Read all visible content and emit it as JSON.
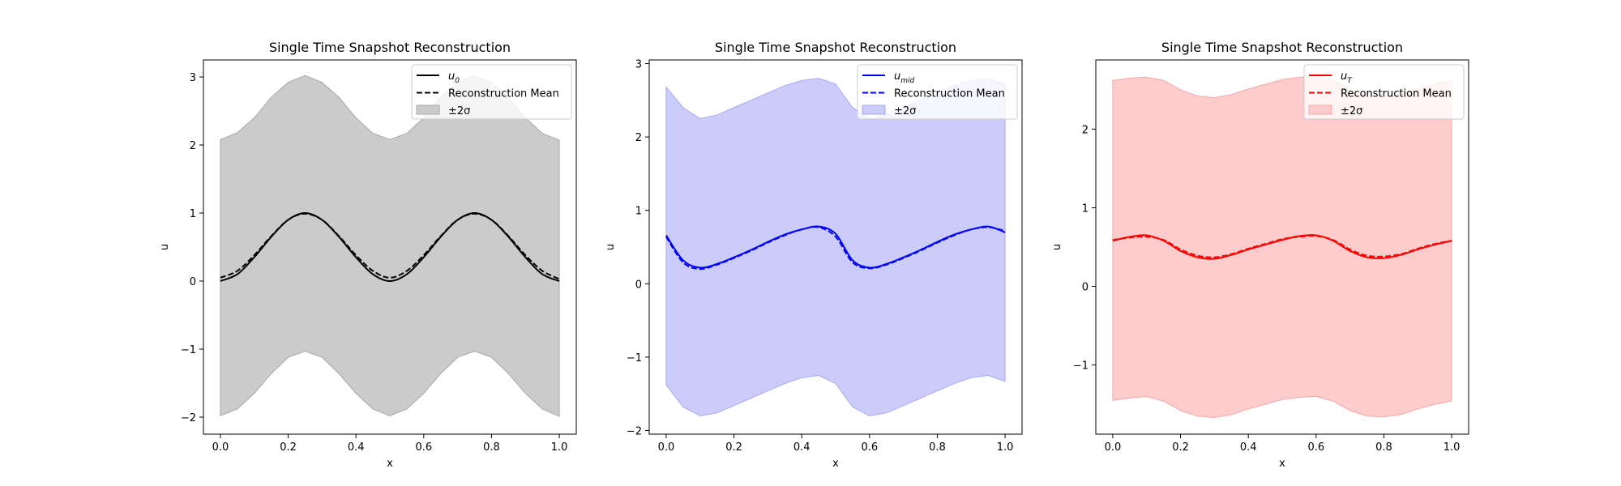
{
  "chart_data": [
    {
      "type": "line",
      "title": "Single Time Snapshot Reconstruction",
      "xlabel": "x",
      "ylabel": "u",
      "xlim": [
        -0.05,
        1.05
      ],
      "ylim": [
        -2.25,
        3.25
      ],
      "xticks": [
        0.0,
        0.2,
        0.4,
        0.6,
        0.8,
        1.0
      ],
      "xtick_labels": [
        "0.0",
        "0.2",
        "0.4",
        "0.6",
        "0.8",
        "1.0"
      ],
      "yticks": [
        -2,
        -1,
        0,
        1,
        2,
        3
      ],
      "ytick_labels": [
        "−2",
        "−1",
        "0",
        "1",
        "2",
        "3"
      ],
      "color": "#000000",
      "band_fill": "#cbcbcb",
      "band_edge": "#a8a8a8",
      "legend_position": "top-right",
      "legend": [
        {
          "base": "u",
          "sub": "0",
          "style": "solid"
        },
        {
          "label": "Reconstruction Mean",
          "style": "dashed"
        },
        {
          "label": "±2σ",
          "style": "band"
        }
      ],
      "x": [
        0.0,
        0.05,
        0.1,
        0.15,
        0.2,
        0.25,
        0.3,
        0.35,
        0.4,
        0.45,
        0.5,
        0.55,
        0.6,
        0.65,
        0.7,
        0.75,
        0.8,
        0.85,
        0.9,
        0.95,
        1.0
      ],
      "series": [
        {
          "name": "u0",
          "style": "solid",
          "values": [
            0.0,
            0.1,
            0.35,
            0.65,
            0.9,
            1.0,
            0.9,
            0.65,
            0.35,
            0.1,
            0.0,
            0.1,
            0.35,
            0.65,
            0.9,
            1.0,
            0.9,
            0.65,
            0.35,
            0.1,
            0.0
          ]
        },
        {
          "name": "Reconstruction Mean",
          "style": "dashed",
          "values": [
            0.05,
            0.15,
            0.38,
            0.66,
            0.9,
            0.99,
            0.9,
            0.66,
            0.38,
            0.15,
            0.05,
            0.15,
            0.38,
            0.66,
            0.9,
            0.99,
            0.9,
            0.66,
            0.38,
            0.15,
            0.03
          ]
        }
      ],
      "band": {
        "upper": [
          2.08,
          2.18,
          2.4,
          2.7,
          2.92,
          3.02,
          2.92,
          2.7,
          2.4,
          2.17,
          2.08,
          2.17,
          2.4,
          2.7,
          2.92,
          3.02,
          2.92,
          2.7,
          2.4,
          2.17,
          2.07
        ],
        "lower": [
          -1.98,
          -1.88,
          -1.65,
          -1.36,
          -1.12,
          -1.03,
          -1.12,
          -1.36,
          -1.65,
          -1.88,
          -1.98,
          -1.88,
          -1.65,
          -1.36,
          -1.12,
          -1.03,
          -1.12,
          -1.36,
          -1.65,
          -1.88,
          -1.99
        ]
      }
    },
    {
      "type": "line",
      "title": "Single Time Snapshot Reconstruction",
      "xlabel": "x",
      "ylabel": "u",
      "xlim": [
        -0.05,
        1.05
      ],
      "ylim": [
        -2.05,
        3.05
      ],
      "xticks": [
        0.0,
        0.2,
        0.4,
        0.6,
        0.8,
        1.0
      ],
      "xtick_labels": [
        "0.0",
        "0.2",
        "0.4",
        "0.6",
        "0.8",
        "1.0"
      ],
      "yticks": [
        -2,
        -1,
        0,
        1,
        2,
        3
      ],
      "ytick_labels": [
        "−2",
        "−1",
        "0",
        "1",
        "2",
        "3"
      ],
      "color": "#0000ff",
      "band_fill": "#ccccfb",
      "band_edge": "#a9a9f0",
      "legend_position": "top-right",
      "legend": [
        {
          "base": "u",
          "sub": "mid",
          "style": "solid"
        },
        {
          "label": "Reconstruction Mean",
          "style": "dashed"
        },
        {
          "label": "±2σ",
          "style": "band"
        }
      ],
      "x": [
        0.0,
        0.05,
        0.1,
        0.15,
        0.2,
        0.25,
        0.3,
        0.35,
        0.4,
        0.45,
        0.5,
        0.55,
        0.6,
        0.65,
        0.7,
        0.75,
        0.8,
        0.85,
        0.9,
        0.95,
        1.0
      ],
      "series": [
        {
          "name": "umid",
          "style": "solid",
          "values": [
            0.66,
            0.32,
            0.22,
            0.27,
            0.36,
            0.46,
            0.57,
            0.67,
            0.74,
            0.78,
            0.68,
            0.32,
            0.22,
            0.27,
            0.36,
            0.46,
            0.57,
            0.67,
            0.74,
            0.78,
            0.7
          ]
        },
        {
          "name": "Reconstruction Mean",
          "style": "dashed",
          "values": [
            0.64,
            0.29,
            0.2,
            0.26,
            0.35,
            0.45,
            0.56,
            0.66,
            0.74,
            0.77,
            0.64,
            0.29,
            0.21,
            0.26,
            0.35,
            0.45,
            0.56,
            0.66,
            0.74,
            0.77,
            0.72
          ]
        }
      ],
      "band": {
        "upper": [
          2.68,
          2.4,
          2.25,
          2.3,
          2.4,
          2.5,
          2.6,
          2.7,
          2.77,
          2.8,
          2.72,
          2.4,
          2.25,
          2.3,
          2.4,
          2.5,
          2.6,
          2.7,
          2.77,
          2.8,
          2.72
        ],
        "lower": [
          -1.38,
          -1.68,
          -1.8,
          -1.76,
          -1.66,
          -1.56,
          -1.46,
          -1.36,
          -1.28,
          -1.25,
          -1.36,
          -1.68,
          -1.8,
          -1.76,
          -1.66,
          -1.56,
          -1.46,
          -1.36,
          -1.28,
          -1.25,
          -1.33
        ]
      }
    },
    {
      "type": "line",
      "title": "Single Time Snapshot Reconstruction",
      "xlabel": "x",
      "ylabel": "u",
      "xlim": [
        -0.05,
        1.05
      ],
      "ylim": [
        -1.88,
        2.88
      ],
      "xticks": [
        0.0,
        0.2,
        0.4,
        0.6,
        0.8,
        1.0
      ],
      "xtick_labels": [
        "0.0",
        "0.2",
        "0.4",
        "0.6",
        "0.8",
        "1.0"
      ],
      "yticks": [
        -1,
        0,
        1,
        2
      ],
      "ytick_labels": [
        "−1",
        "0",
        "1",
        "2"
      ],
      "color": "#ff0000",
      "band_fill": "#fdcccc",
      "band_edge": "#f5a8a8",
      "legend_position": "top-right",
      "legend": [
        {
          "base": "u",
          "sub": "T",
          "style": "solid"
        },
        {
          "label": "Reconstruction Mean",
          "style": "dashed"
        },
        {
          "label": "±2σ",
          "style": "band"
        }
      ],
      "x": [
        0.0,
        0.05,
        0.1,
        0.15,
        0.2,
        0.25,
        0.3,
        0.35,
        0.4,
        0.45,
        0.5,
        0.55,
        0.6,
        0.65,
        0.7,
        0.75,
        0.8,
        0.85,
        0.9,
        0.95,
        1.0
      ],
      "series": [
        {
          "name": "uT",
          "style": "solid",
          "values": [
            0.58,
            0.63,
            0.65,
            0.58,
            0.45,
            0.37,
            0.35,
            0.4,
            0.47,
            0.53,
            0.59,
            0.64,
            0.65,
            0.58,
            0.45,
            0.37,
            0.36,
            0.4,
            0.47,
            0.53,
            0.58
          ]
        },
        {
          "name": "Reconstruction Mean",
          "style": "dashed",
          "values": [
            0.59,
            0.62,
            0.63,
            0.59,
            0.47,
            0.39,
            0.37,
            0.41,
            0.48,
            0.54,
            0.6,
            0.63,
            0.64,
            0.59,
            0.47,
            0.39,
            0.38,
            0.41,
            0.48,
            0.54,
            0.58
          ]
        }
      ],
      "band": {
        "upper": [
          2.62,
          2.65,
          2.66,
          2.62,
          2.5,
          2.42,
          2.4,
          2.44,
          2.51,
          2.57,
          2.63,
          2.66,
          2.67,
          2.62,
          2.5,
          2.42,
          2.41,
          2.44,
          2.51,
          2.57,
          2.61
        ],
        "lower": [
          -1.45,
          -1.42,
          -1.4,
          -1.46,
          -1.58,
          -1.65,
          -1.67,
          -1.63,
          -1.56,
          -1.5,
          -1.44,
          -1.41,
          -1.4,
          -1.46,
          -1.58,
          -1.65,
          -1.66,
          -1.63,
          -1.56,
          -1.5,
          -1.46
        ]
      }
    }
  ]
}
